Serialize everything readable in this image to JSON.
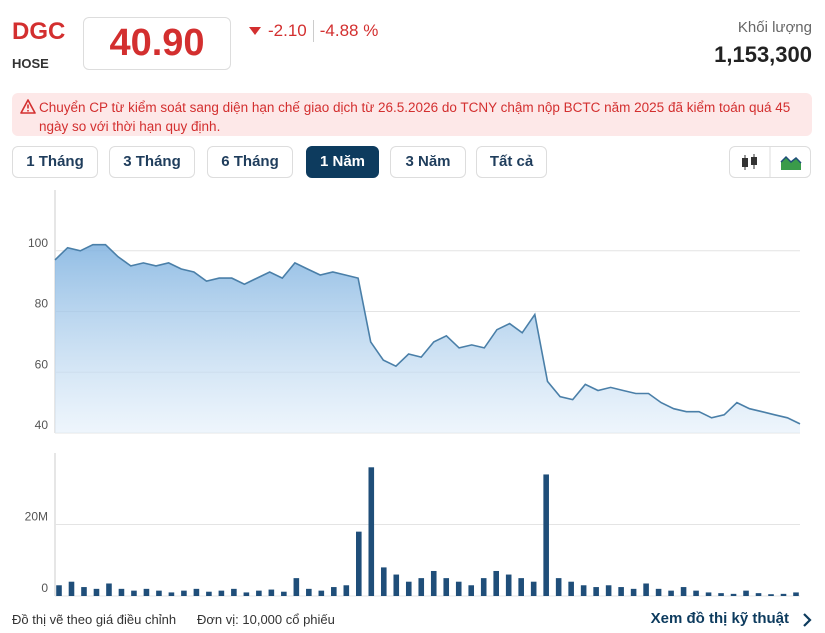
{
  "header": {
    "symbol": "DGC",
    "exchange": "HOSE",
    "price": "40.90",
    "change": "-2.10",
    "change_percent": "-4.88 %",
    "volume_label": "Khối lượng",
    "volume": "1,153,300"
  },
  "alert": "Chuyển CP từ kiểm soát sang diện hạn chế giao dịch từ 26.5.2026 do TCNY chậm nộp BCTC năm 2025 đã kiểm toán quá 45 ngày so với thời hạn quy định.",
  "tabs": [
    "1 Tháng",
    "3 Tháng",
    "6 Tháng",
    "1 Năm",
    "3 Năm",
    "Tất cả"
  ],
  "active_tab": 3,
  "chart_data": [
    {
      "type": "area",
      "color": "#4a7fa8",
      "grid": true,
      "ylim": [
        40,
        120
      ],
      "yticks": [
        40,
        60,
        80,
        100
      ],
      "values": [
        97,
        101,
        100,
        102,
        102,
        98,
        95,
        96,
        95,
        96,
        94,
        93,
        90,
        91,
        91,
        89,
        91,
        93,
        91,
        96,
        94,
        92,
        93,
        92,
        91,
        70,
        64,
        62,
        66,
        65,
        70,
        72,
        68,
        69,
        68,
        74,
        76,
        73,
        79,
        57,
        52,
        51,
        56,
        54,
        55,
        54,
        53,
        53,
        50,
        48,
        47,
        47,
        45,
        46,
        50,
        48,
        47,
        46,
        45,
        43
      ]
    },
    {
      "type": "bar",
      "color": "#1f4e79",
      "grid": true,
      "ylim": [
        0,
        40000000
      ],
      "yticks": [
        0,
        {
          "value": 20000000,
          "label": "20M"
        }
      ],
      "values": [
        3000000,
        4000000,
        2500000,
        2000000,
        3500000,
        2000000,
        1500000,
        2000000,
        1500000,
        1000000,
        1500000,
        2000000,
        1200000,
        1500000,
        2000000,
        1000000,
        1500000,
        1800000,
        1200000,
        5000000,
        2000000,
        1500000,
        2500000,
        3000000,
        18000000,
        36000000,
        8000000,
        6000000,
        4000000,
        5000000,
        7000000,
        5000000,
        4000000,
        3000000,
        5000000,
        7000000,
        6000000,
        5000000,
        4000000,
        34000000,
        5000000,
        4000000,
        3000000,
        2500000,
        3000000,
        2500000,
        2000000,
        3500000,
        2000000,
        1500000,
        2500000,
        1500000,
        1000000,
        800000,
        600000,
        1500000,
        800000,
        500000,
        600000,
        1000000
      ]
    }
  ],
  "footer": {
    "note": "Đồ thị vẽ theo giá điều chỉnh",
    "unit": "Đơn vị: 10,000 cổ phiếu",
    "link": "Xem đồ thị kỹ thuật"
  }
}
